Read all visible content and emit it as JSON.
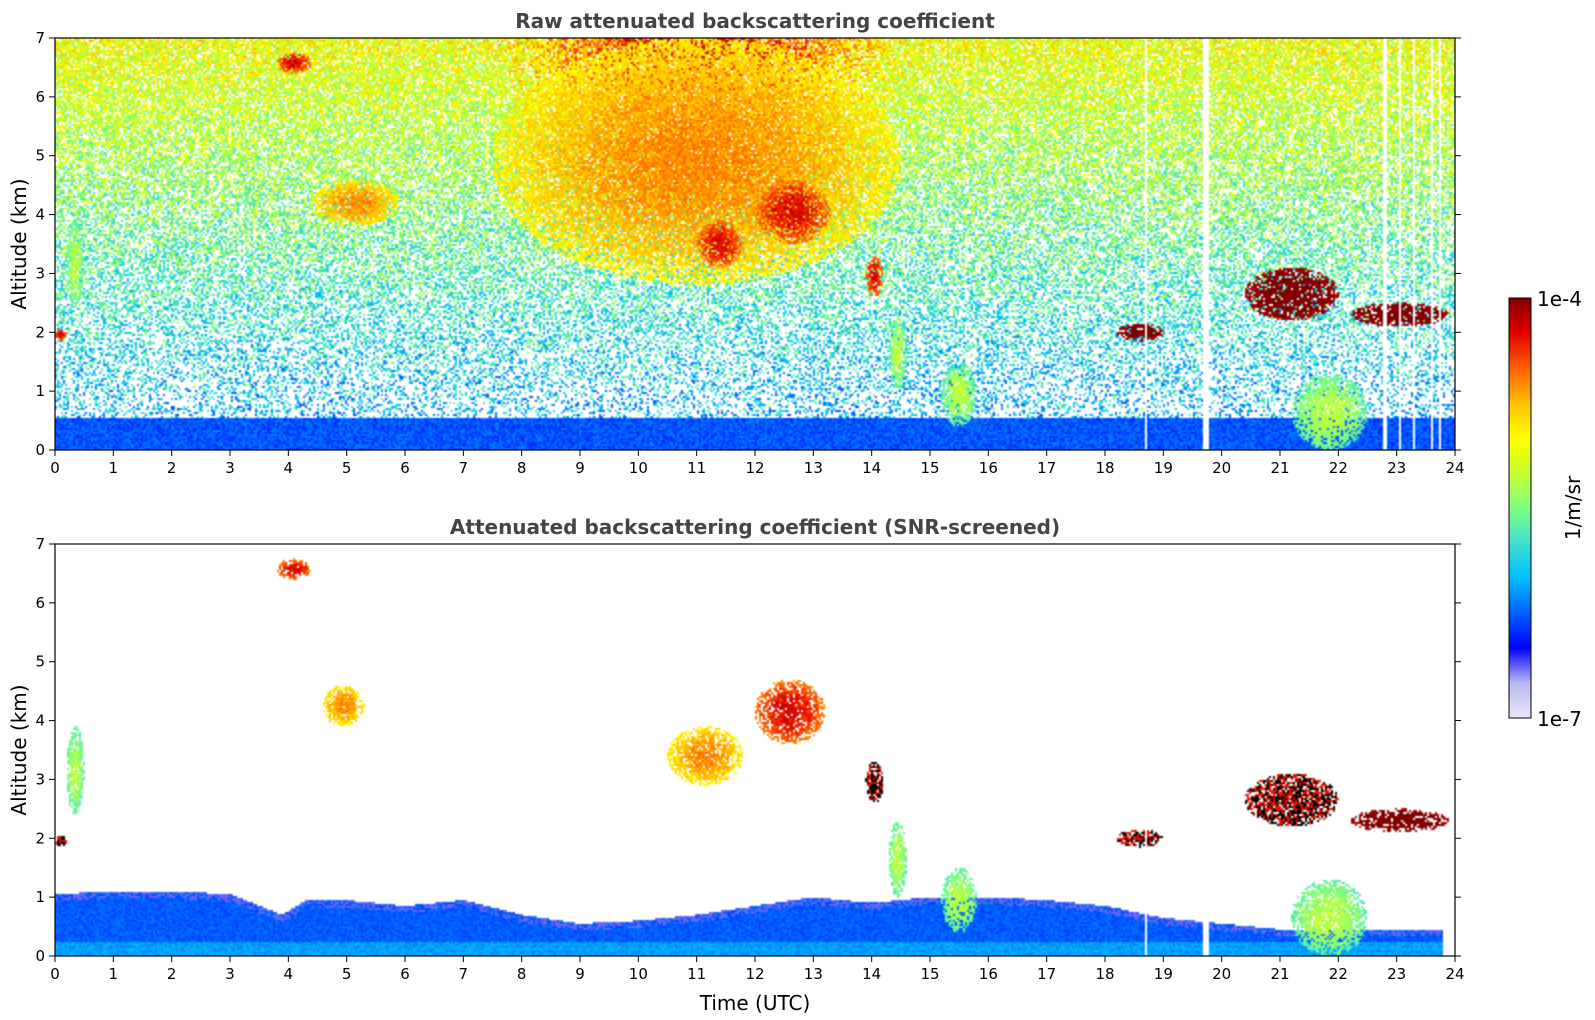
{
  "chart_data": [
    {
      "type": "heatmap",
      "title": "Raw attenuated backscattering coefficient",
      "xlabel": "",
      "ylabel": "Altitude (km)",
      "xlim": [
        0,
        24
      ],
      "ylim": [
        0,
        7
      ],
      "xticks": [
        "0",
        "1",
        "2",
        "3",
        "4",
        "5",
        "6",
        "7",
        "8",
        "9",
        "10",
        "11",
        "12",
        "13",
        "14",
        "15",
        "16",
        "17",
        "18",
        "19",
        "20",
        "21",
        "22",
        "23",
        "24"
      ],
      "yticks": [
        "0",
        "1",
        "2",
        "3",
        "4",
        "5",
        "6",
        "7"
      ],
      "background_noise": true,
      "features": [
        {
          "kind": "boundary-layer",
          "x": [
            0,
            24
          ],
          "top_km": 0.5,
          "value": "low-blue"
        },
        {
          "kind": "cloud",
          "x": [
            0.2,
            0.5
          ],
          "y": [
            2.4,
            3.9
          ],
          "value": "mid"
        },
        {
          "kind": "cloud",
          "x": [
            0.0,
            0.2
          ],
          "y": [
            1.85,
            2.05
          ],
          "value": "high"
        },
        {
          "kind": "cloud",
          "x": [
            3.8,
            4.4
          ],
          "y": [
            6.4,
            6.75
          ],
          "value": "high"
        },
        {
          "kind": "aerosol",
          "x": [
            4.4,
            5.9
          ],
          "y": [
            3.8,
            4.6
          ],
          "value": "upper-mid"
        },
        {
          "kind": "aerosol",
          "x": [
            7.5,
            14.5
          ],
          "y": [
            2.8,
            7.0
          ],
          "value": "upper-mid"
        },
        {
          "kind": "cloud",
          "x": [
            11.0,
            11.8
          ],
          "y": [
            3.1,
            3.9
          ],
          "value": "high"
        },
        {
          "kind": "cloud",
          "x": [
            12.0,
            13.3
          ],
          "y": [
            3.5,
            4.6
          ],
          "value": "high"
        },
        {
          "kind": "cloud",
          "x": [
            13.9,
            14.2
          ],
          "y": [
            2.6,
            3.3
          ],
          "value": "high"
        },
        {
          "kind": "virga",
          "x": [
            14.3,
            14.6
          ],
          "y": [
            1.0,
            2.3
          ],
          "value": "mid"
        },
        {
          "kind": "virga",
          "x": [
            15.2,
            15.8
          ],
          "y": [
            0.4,
            1.5
          ],
          "value": "mid"
        },
        {
          "kind": "cloud",
          "x": [
            18.2,
            19.0
          ],
          "y": [
            1.85,
            2.15
          ],
          "value": "max"
        },
        {
          "kind": "cloud",
          "x": [
            20.4,
            22.0
          ],
          "y": [
            2.2,
            3.1
          ],
          "value": "max"
        },
        {
          "kind": "cloud",
          "x": [
            22.2,
            23.9
          ],
          "y": [
            2.1,
            2.5
          ],
          "value": "max"
        },
        {
          "kind": "virga",
          "x": [
            21.2,
            22.5
          ],
          "y": [
            0.0,
            1.3
          ],
          "value": "mid"
        }
      ],
      "dropouts_utc": [
        18.7,
        19.7,
        19.75,
        22.8,
        23.05,
        23.3,
        23.6,
        23.75
      ]
    },
    {
      "type": "heatmap",
      "title": "Attenuated backscattering coefficient (SNR-screened)",
      "xlabel": "Time (UTC)",
      "ylabel": "Altitude (km)",
      "xlim": [
        0,
        24
      ],
      "ylim": [
        0,
        7
      ],
      "xticks": [
        "0",
        "1",
        "2",
        "3",
        "4",
        "5",
        "6",
        "7",
        "8",
        "9",
        "10",
        "11",
        "12",
        "13",
        "14",
        "15",
        "16",
        "17",
        "18",
        "19",
        "20",
        "21",
        "22",
        "23",
        "24"
      ],
      "yticks": [
        "0",
        "1",
        "2",
        "3",
        "4",
        "5",
        "6",
        "7"
      ],
      "background_noise": false,
      "boundary_layer_top_km": [
        [
          0,
          1.05
        ],
        [
          1,
          1.1
        ],
        [
          2,
          1.1
        ],
        [
          3,
          1.05
        ],
        [
          3.9,
          0.7
        ],
        [
          4.3,
          0.95
        ],
        [
          5,
          0.95
        ],
        [
          6,
          0.85
        ],
        [
          7,
          0.95
        ],
        [
          8,
          0.7
        ],
        [
          9,
          0.55
        ],
        [
          10,
          0.6
        ],
        [
          11,
          0.7
        ],
        [
          12,
          0.85
        ],
        [
          13,
          1.0
        ],
        [
          14,
          0.9
        ],
        [
          15,
          1.0
        ],
        [
          16,
          1.0
        ],
        [
          17,
          0.95
        ],
        [
          18,
          0.85
        ],
        [
          19,
          0.65
        ],
        [
          20,
          0.55
        ],
        [
          21,
          0.45
        ],
        [
          22,
          0.45
        ],
        [
          23,
          0.45
        ],
        [
          23.8,
          0.45
        ]
      ],
      "features": [
        {
          "kind": "cloud",
          "x": [
            0.2,
            0.5
          ],
          "y": [
            2.4,
            3.9
          ],
          "value": "mid"
        },
        {
          "kind": "cloud",
          "x": [
            0.0,
            0.2
          ],
          "y": [
            1.85,
            2.05
          ],
          "value": "saturated"
        },
        {
          "kind": "cloud",
          "x": [
            3.8,
            4.4
          ],
          "y": [
            6.4,
            6.75
          ],
          "value": "high"
        },
        {
          "kind": "cloud",
          "x": [
            4.6,
            5.3
          ],
          "y": [
            3.9,
            4.6
          ],
          "value": "upper-mid"
        },
        {
          "kind": "cloud",
          "x": [
            10.5,
            11.8
          ],
          "y": [
            2.9,
            3.9
          ],
          "value": "upper-mid"
        },
        {
          "kind": "cloud",
          "x": [
            12.0,
            13.2
          ],
          "y": [
            3.6,
            4.7
          ],
          "value": "high"
        },
        {
          "kind": "cloud",
          "x": [
            13.9,
            14.2
          ],
          "y": [
            2.6,
            3.3
          ],
          "value": "saturated"
        },
        {
          "kind": "virga",
          "x": [
            14.3,
            14.6
          ],
          "y": [
            1.0,
            2.3
          ],
          "value": "mid"
        },
        {
          "kind": "virga",
          "x": [
            15.2,
            15.8
          ],
          "y": [
            0.4,
            1.5
          ],
          "value": "mid"
        },
        {
          "kind": "cloud",
          "x": [
            18.2,
            19.0
          ],
          "y": [
            1.85,
            2.15
          ],
          "value": "saturated"
        },
        {
          "kind": "cloud",
          "x": [
            20.4,
            22.0
          ],
          "y": [
            2.2,
            3.1
          ],
          "value": "saturated"
        },
        {
          "kind": "cloud",
          "x": [
            22.2,
            23.9
          ],
          "y": [
            2.1,
            2.5
          ],
          "value": "max"
        },
        {
          "kind": "virga",
          "x": [
            21.2,
            22.5
          ],
          "y": [
            0.0,
            1.3
          ],
          "value": "mid"
        }
      ],
      "dropouts_utc": [
        18.7,
        19.7,
        19.75
      ]
    }
  ],
  "colorbar": {
    "label": "1/m/sr",
    "min_label": "1e-7",
    "max_label": "1e-4",
    "scale": "log",
    "range": [
      1e-07,
      0.0001
    ],
    "colormap": [
      "#e8e8f8",
      "#b8b8f0",
      "#0000ff",
      "#0060ff",
      "#00c0ff",
      "#40e0d0",
      "#80ff80",
      "#c8ff30",
      "#ffff00",
      "#ffc000",
      "#ff6000",
      "#e00000",
      "#800000"
    ]
  }
}
